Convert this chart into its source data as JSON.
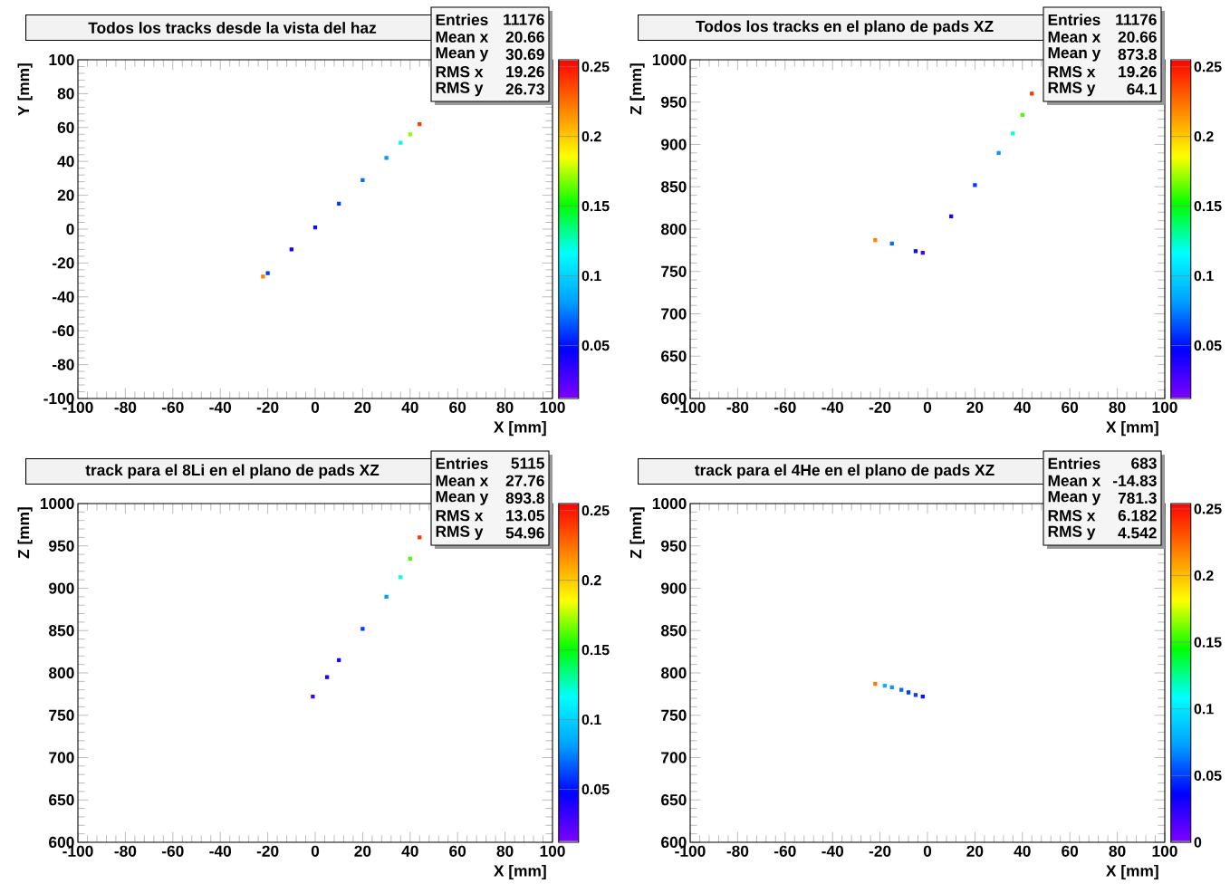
{
  "chart_data": [
    {
      "type": "scatter",
      "title": "Todos los tracks desde la vista del haz",
      "xlabel": "X [mm]",
      "ylabel": "Y [mm]",
      "marker": "square",
      "x": [
        -22,
        -20,
        -10,
        0,
        10,
        20,
        30,
        36,
        40,
        44
      ],
      "values": [
        -28,
        -26,
        -12,
        1,
        15,
        29,
        42,
        51,
        56,
        62
      ],
      "cvalues": [
        0.22,
        0.06,
        0.04,
        0.05,
        0.06,
        0.07,
        0.08,
        0.12,
        0.17,
        0.24
      ],
      "xlim": [
        -100,
        100
      ],
      "ylim": [
        -100,
        100
      ],
      "xticks": [
        -100,
        -80,
        -60,
        -40,
        -20,
        0,
        20,
        40,
        60,
        80,
        100
      ],
      "yticks": [
        -100,
        -80,
        -60,
        -40,
        -20,
        0,
        20,
        40,
        60,
        80,
        100
      ],
      "clim": [
        0.012,
        0.255
      ],
      "cticks": [
        0.05,
        0.1,
        0.15,
        0.2,
        0.25
      ],
      "annotations": [
        "Entries",
        "11176",
        "Mean x",
        "20.66",
        "Mean y",
        "30.69",
        "RMS x",
        "19.26",
        "RMS y",
        "26.73"
      ]
    },
    {
      "type": "scatter",
      "title": "Todos los tracks en el plano de pads XZ",
      "xlabel": "X [mm]",
      "ylabel": "Z [mm]",
      "marker": "square",
      "x": [
        -22,
        -15,
        -5,
        -2,
        10,
        20,
        30,
        36,
        40,
        44
      ],
      "values": [
        787,
        783,
        774,
        772,
        815,
        852,
        890,
        913,
        935,
        960
      ],
      "cvalues": [
        0.22,
        0.07,
        0.05,
        0.03,
        0.04,
        0.06,
        0.08,
        0.12,
        0.16,
        0.24
      ],
      "xlim": [
        -100,
        100
      ],
      "ylim": [
        600,
        1000
      ],
      "xticks": [
        -100,
        -80,
        -60,
        -40,
        -20,
        0,
        20,
        40,
        60,
        80,
        100
      ],
      "yticks": [
        600,
        650,
        700,
        750,
        800,
        850,
        900,
        950,
        1000
      ],
      "clim": [
        0.012,
        0.255
      ],
      "cticks": [
        0.05,
        0.1,
        0.15,
        0.2,
        0.25
      ],
      "annotations": [
        "Entries",
        "11176",
        "Mean x",
        "20.66",
        "Mean y",
        "873.8",
        "RMS x",
        "19.26",
        "RMS y",
        "64.1"
      ]
    },
    {
      "type": "scatter",
      "title": "track para el 8Li en el plano de pads XZ",
      "xlabel": "X [mm]",
      "ylabel": "Z [mm]",
      "marker": "square",
      "x": [
        -1,
        5,
        10,
        20,
        30,
        36,
        40,
        44
      ],
      "values": [
        772,
        795,
        815,
        852,
        890,
        913,
        935,
        960
      ],
      "cvalues": [
        0.03,
        0.04,
        0.04,
        0.06,
        0.08,
        0.12,
        0.16,
        0.24
      ],
      "xlim": [
        -100,
        100
      ],
      "ylim": [
        600,
        1000
      ],
      "xticks": [
        -100,
        -80,
        -60,
        -40,
        -20,
        0,
        20,
        40,
        60,
        80,
        100
      ],
      "yticks": [
        600,
        650,
        700,
        750,
        800,
        850,
        900,
        950,
        1000
      ],
      "clim": [
        0.012,
        0.255
      ],
      "cticks": [
        0.05,
        0.1,
        0.15,
        0.2,
        0.25
      ],
      "annotations": [
        "Entries",
        "5115",
        "Mean x",
        "27.76",
        "Mean y",
        "893.8",
        "RMS x",
        "13.05",
        "RMS y",
        "54.96"
      ]
    },
    {
      "type": "scatter",
      "title": "track para el 4He en el plano de pads XZ",
      "xlabel": "X [mm]",
      "ylabel": "Z [mm]",
      "marker": "square",
      "x": [
        -22,
        -18,
        -15,
        -11,
        -8,
        -5,
        -2
      ],
      "values": [
        787,
        785,
        783,
        780,
        777,
        774,
        772
      ],
      "cvalues": [
        0.22,
        0.08,
        0.07,
        0.06,
        0.05,
        0.05,
        0.04
      ],
      "xlim": [
        -100,
        100
      ],
      "ylim": [
        600,
        1000
      ],
      "xticks": [
        -100,
        -80,
        -60,
        -40,
        -20,
        0,
        20,
        40,
        60,
        80,
        100
      ],
      "yticks": [
        600,
        650,
        700,
        750,
        800,
        850,
        900,
        950,
        1000
      ],
      "clim": [
        0,
        0.254
      ],
      "cticks": [
        0,
        0.05,
        0.1,
        0.15,
        0.2,
        0.25
      ],
      "annotations": [
        "Entries",
        "683",
        "Mean x",
        "-14.83",
        "Mean y",
        "781.3",
        "RMS x",
        "6.182",
        "RMS y",
        "4.542"
      ]
    }
  ]
}
